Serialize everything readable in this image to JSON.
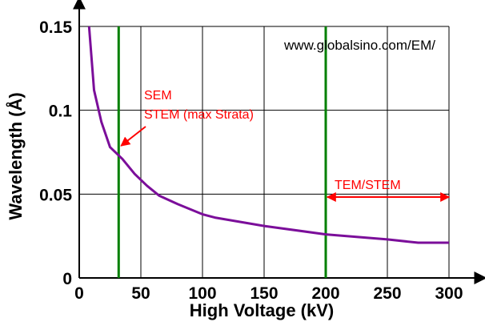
{
  "chart_data": {
    "type": "line",
    "xlabel": "High Voltage (kV)",
    "ylabel": "Wavelength (Å)",
    "xlim": [
      0,
      300
    ],
    "ylim": [
      0,
      0.15
    ],
    "x_ticks": [
      0,
      50,
      100,
      150,
      200,
      250,
      300
    ],
    "x_tick_labels": [
      "0",
      "50",
      "100",
      "150",
      "200",
      "250",
      "300"
    ],
    "y_ticks": [
      0,
      0.05,
      0.1,
      0.15
    ],
    "y_tick_labels": [
      "0",
      "0.05",
      "0.1",
      "0.15"
    ],
    "grid": true,
    "series": [
      {
        "color": "#7b0e9a",
        "x": [
          8,
          12,
          18,
          25,
          35,
          45,
          55,
          65,
          80,
          100,
          110,
          150,
          200,
          250,
          275,
          300
        ],
        "y": [
          0.15,
          0.112,
          0.093,
          0.078,
          0.071,
          0.062,
          0.055,
          0.049,
          0.044,
          0.038,
          0.036,
          0.031,
          0.026,
          0.023,
          0.021,
          0.021
        ]
      }
    ],
    "reference_lines": [
      {
        "axis": "x",
        "value": 32,
        "color": "#008000"
      },
      {
        "axis": "x",
        "value": 200,
        "color": "#008000"
      }
    ],
    "annotations": [
      {
        "lines": [
          "SEM",
          "STEM (max Strata)"
        ],
        "color": "#ff0000",
        "arrow_to": [
          32,
          0.075
        ]
      },
      {
        "text": "TEM/STEM",
        "color": "#ff0000",
        "range": [
          200,
          300
        ],
        "at_y": 0.045
      }
    ],
    "watermark": "www.globalsino.com/EM/"
  }
}
